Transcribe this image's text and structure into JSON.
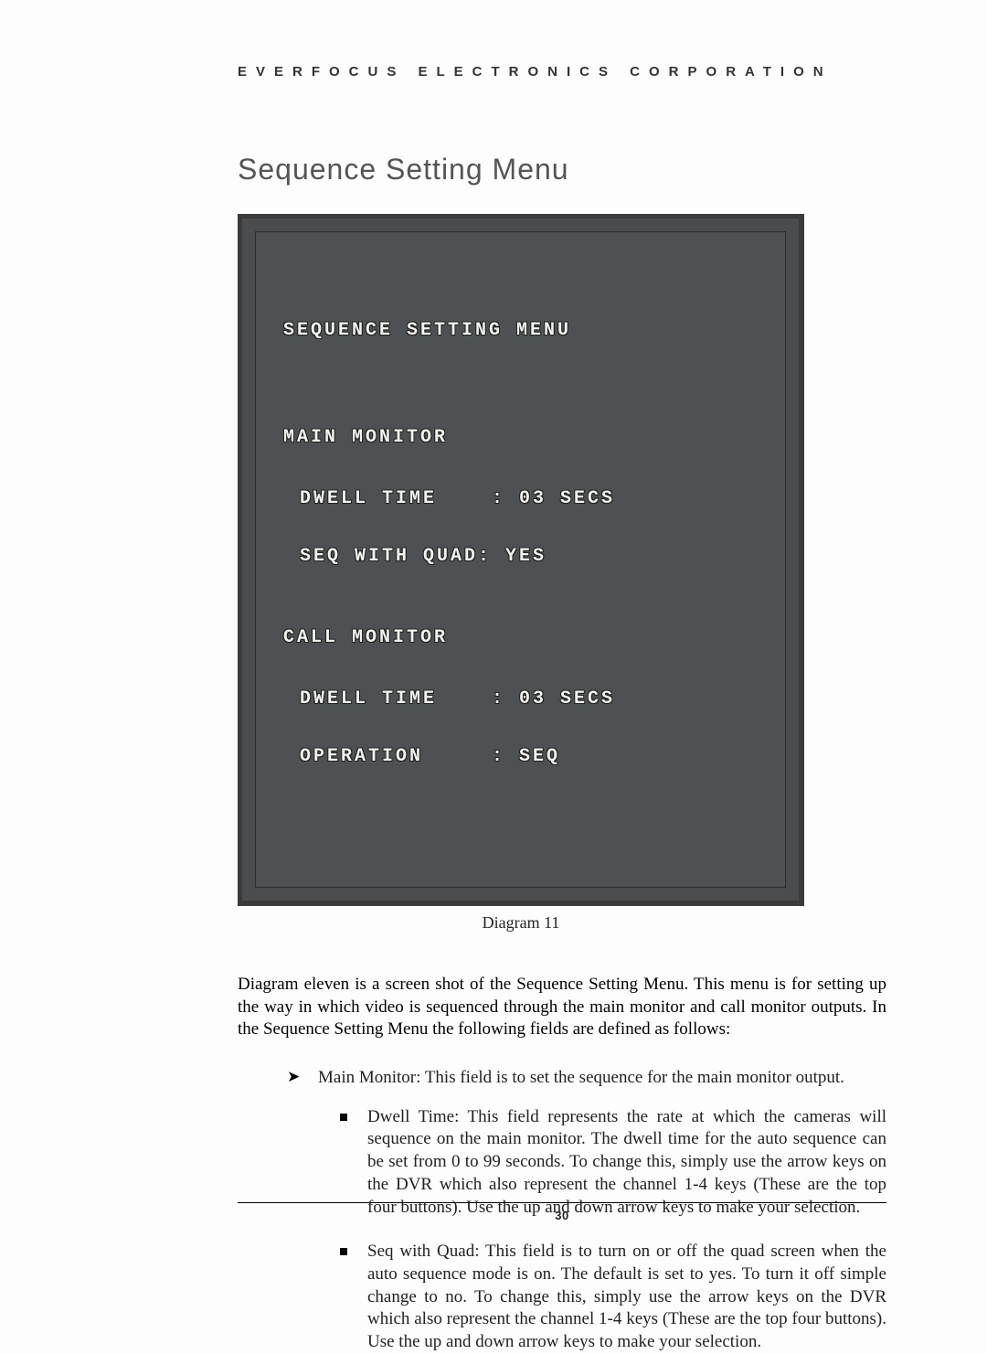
{
  "header": "EVERFOCUS ELECTRONICS CORPORATION",
  "title": "Sequence Setting Menu",
  "screen": {
    "heading": "SEQUENCE SETTING MENU",
    "main_label": "MAIN MONITOR",
    "main_field1": "DWELL TIME    : 03 SECS",
    "main_field2": "SEQ WITH QUAD: YES",
    "call_label": "CALL MONITOR",
    "call_field1": "DWELL TIME    : 03 SECS",
    "call_field2": "OPERATION     : SEQ",
    "background_color": "#4d5153",
    "text_color": "#f2f2f0",
    "border_color": "#3b3b3b",
    "font_family": "Courier New"
  },
  "caption": "Diagram 11",
  "paragraph": "Diagram eleven is a screen shot of the Sequence Setting Menu. This menu is for setting up the way in which video is sequenced through the main monitor and call monitor outputs. In the Sequence Setting Menu the following fields are defined as follows:",
  "bullets": {
    "outer1": "Main Monitor: This field is to set the sequence for the main monitor output.",
    "inner1": "Dwell Time: This field represents the rate at which the cameras will sequence on the main monitor. The dwell time for the auto sequence can be set from 0 to 99 seconds. To change this, simply use the arrow keys on the DVR which also represent the channel 1-4 keys (These are the top four buttons). Use the up and down arrow keys to make your selection.",
    "inner2": "Seq with Quad: This field is to turn on or off the quad screen when the auto sequence mode is on. The default is set to yes. To turn it off simple change to no. To change this, simply use the arrow keys on the DVR which also represent the channel 1-4 keys (These are the top four buttons). Use the up and down arrow keys to make your selection."
  },
  "page_number": "30"
}
